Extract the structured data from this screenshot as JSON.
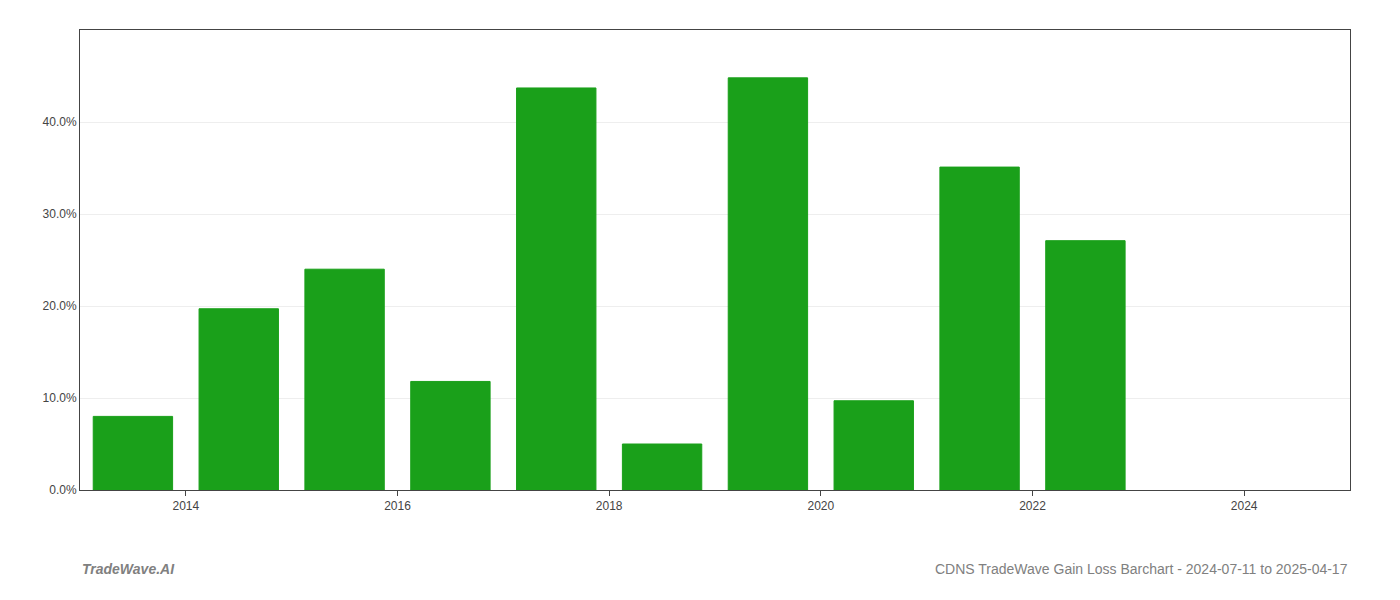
{
  "chart_data": {
    "type": "bar",
    "x": [
      2013.5,
      2014.5,
      2015.5,
      2016.5,
      2017.5,
      2018.5,
      2019.5,
      2020.5,
      2021.5,
      2022.5
    ],
    "values": [
      0.08,
      0.197,
      0.24,
      0.118,
      0.437,
      0.05,
      0.448,
      0.097,
      0.351,
      0.271
    ],
    "color": "#1aa01a",
    "xlim": [
      2013.0,
      2025.0
    ],
    "xticks": [
      2014,
      2016,
      2018,
      2020,
      2022,
      2024
    ],
    "ylim": [
      0,
      0.5
    ],
    "yticks": [
      {
        "value": 0.0,
        "label": "0.0%"
      },
      {
        "value": 0.1,
        "label": "10.0%"
      },
      {
        "value": 0.2,
        "label": "20.0%"
      },
      {
        "value": 0.3,
        "label": "30.0%"
      },
      {
        "value": 0.4,
        "label": "40.0%"
      }
    ],
    "grid": true,
    "annotations": [
      "TradeWave.AI",
      "CDNS TradeWave Gain Loss Barchart - 2024-07-11 to 2025-04-17"
    ]
  }
}
